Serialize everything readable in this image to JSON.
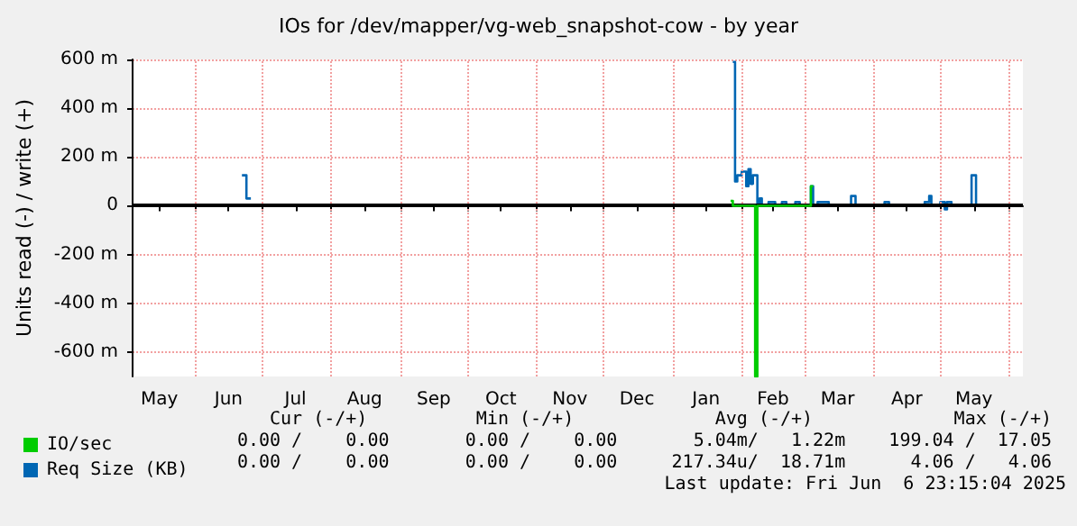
{
  "chart_data": {
    "type": "step",
    "title": "IOs for /dev/mapper/vg-web_snapshot-cow - by year",
    "ylabel": "Units read (-) / write (+)",
    "xlim": [
      "2024-05-04",
      "2025-06-07"
    ],
    "xticks": [
      {
        "value": "2024-05-16",
        "label": "May"
      },
      {
        "value": "2024-06-01",
        "label": null
      },
      {
        "value": "2024-06-16",
        "label": "Jun"
      },
      {
        "value": "2024-07-01",
        "label": null
      },
      {
        "value": "2024-07-16",
        "label": "Jul"
      },
      {
        "value": "2024-08-01",
        "label": null
      },
      {
        "value": "2024-08-16",
        "label": "Aug"
      },
      {
        "value": "2024-09-01",
        "label": null
      },
      {
        "value": "2024-09-16",
        "label": "Sep"
      },
      {
        "value": "2024-10-01",
        "label": null
      },
      {
        "value": "2024-10-16",
        "label": "Oct"
      },
      {
        "value": "2024-11-01",
        "label": null
      },
      {
        "value": "2024-11-16",
        "label": "Nov"
      },
      {
        "value": "2024-12-01",
        "label": null
      },
      {
        "value": "2024-12-16",
        "label": "Dec"
      },
      {
        "value": "2025-01-01",
        "label": null
      },
      {
        "value": "2025-01-16",
        "label": "Jan"
      },
      {
        "value": "2025-02-01",
        "label": null
      },
      {
        "value": "2025-02-15",
        "label": "Feb"
      },
      {
        "value": "2025-03-01",
        "label": null
      },
      {
        "value": "2025-03-16",
        "label": "Mar"
      },
      {
        "value": "2025-04-01",
        "label": null
      },
      {
        "value": "2025-04-16",
        "label": "Apr"
      },
      {
        "value": "2025-05-01",
        "label": null
      },
      {
        "value": "2025-05-16",
        "label": "May"
      },
      {
        "value": "2025-06-01",
        "label": null
      }
    ],
    "ylim": [
      -700,
      600
    ],
    "yticks": [
      {
        "value": -600,
        "label": "-600 m"
      },
      {
        "value": -400,
        "label": "-400 m"
      },
      {
        "value": -200,
        "label": "-200 m"
      },
      0,
      {
        "value": 200,
        "label": "200 m"
      },
      {
        "value": 400,
        "label": "400 m"
      },
      {
        "value": 600,
        "label": "600 m"
      }
    ],
    "grid": true,
    "legend": "bottom left",
    "ref_lines": [
      {
        "axis": "y",
        "value": 0,
        "label": null,
        "color": "#000000"
      }
    ],
    "series": [
      {
        "name": "IO/sec",
        "color": "#00cc00",
        "x": [
          "2025-01-27",
          "2025-01-28",
          "2025-02-07",
          "2025-02-08",
          "2025-03-04",
          "2025-03-05"
        ],
        "values": [
          20,
          0,
          -700,
          0,
          80,
          80
        ]
      },
      {
        "name": "Req Size (KB)",
        "color": "#0066b3",
        "x": [
          "2024-06-22",
          "2024-06-24",
          "2024-06-26",
          "2025-01-28",
          "2025-01-29",
          "2025-01-30",
          "2025-02-01",
          "2025-02-03",
          "2025-02-04",
          "2025-02-05",
          "2025-02-06",
          "2025-02-08",
          "2025-02-09",
          "2025-02-10",
          "2025-02-13",
          "2025-02-16",
          "2025-02-19",
          "2025-02-21",
          "2025-02-25",
          "2025-02-27",
          "2025-03-04",
          "2025-03-05",
          "2025-03-07",
          "2025-03-12",
          "2025-03-22",
          "2025-03-24",
          "2025-04-06",
          "2025-04-08",
          "2025-04-24",
          "2025-04-26",
          "2025-04-27",
          "2025-05-01",
          "2025-05-03",
          "2025-05-04",
          "2025-05-06",
          "2025-05-15",
          "2025-05-17",
          "2025-06-06"
        ],
        "values": [
          125,
          30,
          null,
          590,
          100,
          125,
          140,
          80,
          150,
          90,
          125,
          0,
          30,
          0,
          15,
          0,
          15,
          0,
          15,
          0,
          80,
          0,
          15,
          0,
          40,
          0,
          15,
          0,
          15,
          40,
          0,
          15,
          -15,
          15,
          0,
          125,
          0,
          0
        ]
      }
    ],
    "annotations": [
      "Cur (-/+)          Min (-/+)             Avg (-/+)             Max (-/+)",
      "0.00 /    0.00       0.00 /    0.00       5.04m/   1.22m    199.04 /  17.05",
      "0.00 /    0.00       0.00 /    0.00     217.34u/  18.71m      4.06 /   4.06",
      "Last update: Fri Jun  6 23:15:04 2025"
    ]
  }
}
